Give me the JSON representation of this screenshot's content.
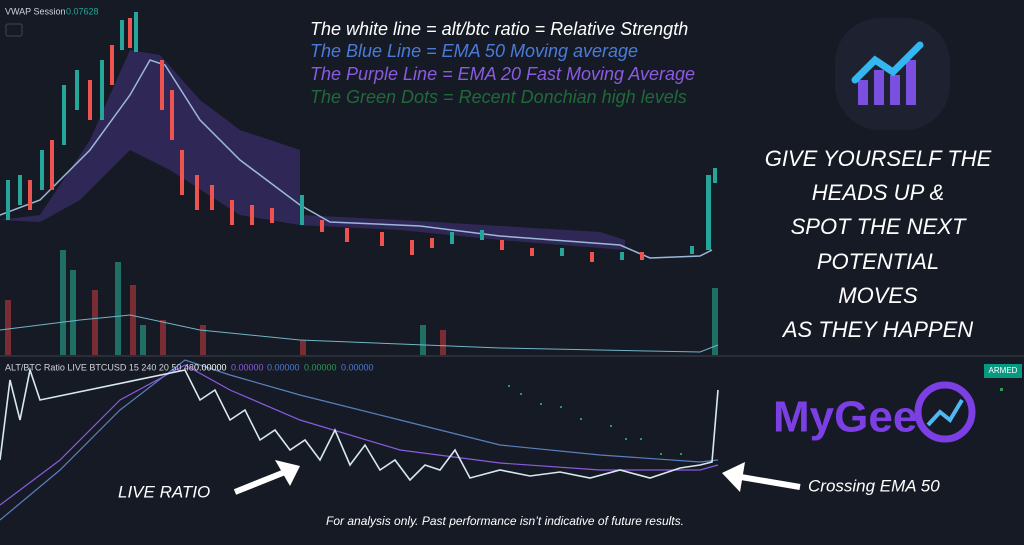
{
  "main_pane": {
    "indicator_name": "VWAP Session",
    "indicator_value": "0.07628"
  },
  "legend_notes": [
    "The white line = alt/btc ratio = Relative Strength",
    "The Blue Line = EMA 50 Moving average",
    "The Purple Line = EMA 20 Fast Moving Average",
    "The Green Dots = Recent Donchian high levels"
  ],
  "headline": [
    "GIVE YOURSELF THE",
    "HEADS UP &",
    "SPOT THE NEXT",
    "POTENTIAL",
    "MOVES",
    "AS THEY HAPPEN"
  ],
  "sub_pane": {
    "indicator_name": "ALT/BTC Ratio LIVE BTCUSD 15 240 20 50 48",
    "values": [
      "0.00000",
      "0.00000",
      "0.00000",
      "0.00000",
      "0.00000"
    ],
    "badge": "ARMED"
  },
  "logo": {
    "text": "MyGee"
  },
  "annotations": {
    "live_ratio": "LIVE RATIO",
    "crossing": "Crossing EMA 50"
  },
  "disclaimer": "For analysis only. Past performance isn’t indicative of future results."
}
